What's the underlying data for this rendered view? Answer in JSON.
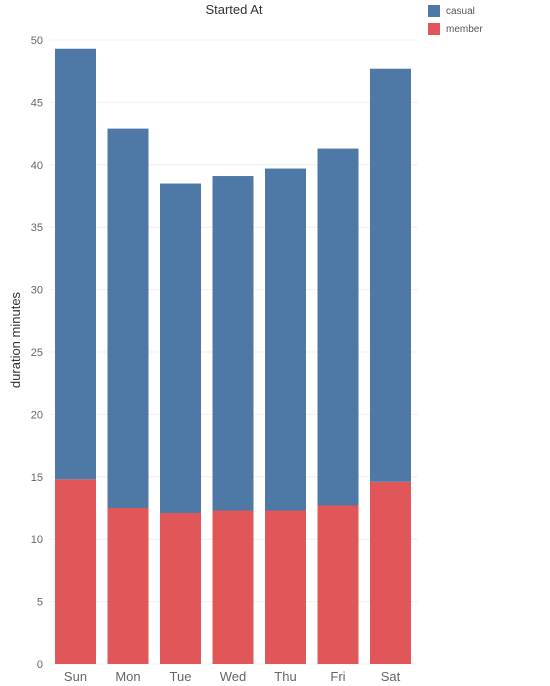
{
  "chart_data": {
    "type": "bar",
    "stacked": true,
    "title": "Started At",
    "xlabel": "",
    "ylabel": "duration minutes",
    "ylim": [
      0,
      50
    ],
    "yticks": [
      0,
      5,
      10,
      15,
      20,
      25,
      30,
      35,
      40,
      45,
      50
    ],
    "categories": [
      "Sun",
      "Mon",
      "Tue",
      "Wed",
      "Thu",
      "Fri",
      "Sat"
    ],
    "series": [
      {
        "name": "member",
        "color": "#e15759",
        "values": [
          14.8,
          12.5,
          12.1,
          12.3,
          12.3,
          12.7,
          14.6
        ]
      },
      {
        "name": "casual",
        "color": "#4e79a7",
        "values": [
          34.5,
          30.4,
          26.4,
          26.8,
          27.4,
          28.6,
          33.1
        ]
      }
    ],
    "grid": true,
    "legend_position": "top-right",
    "legend": [
      {
        "name": "casual",
        "color": "#4e79a7"
      },
      {
        "name": "member",
        "color": "#e15759"
      }
    ]
  }
}
